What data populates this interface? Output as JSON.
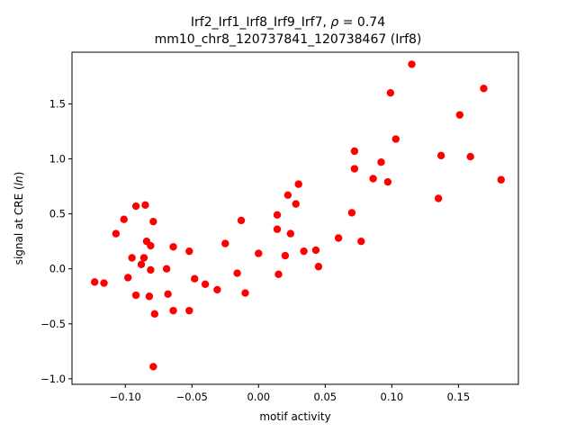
{
  "chart_data": {
    "type": "scatter",
    "title_line1": "Irf2_Irf1_Irf8_Irf9_Irf7, ",
    "title_rho_symbol": "ρ",
    "title_rho_value": " = 0.74",
    "title_line2": "mm10_chr8_120737841_120738467 (Irf8)",
    "xlabel": "motif activity",
    "ylabel_prefix": "signal at CRE (",
    "ylabel_italic": "ln",
    "ylabel_suffix": ")",
    "xlim": [
      -0.14,
      0.195
    ],
    "ylim": [
      -1.05,
      1.97
    ],
    "xticks": [
      -0.1,
      -0.05,
      0.0,
      0.05,
      0.1,
      0.15
    ],
    "xtick_labels": [
      "−0.10",
      "−0.05",
      "0.00",
      "0.05",
      "0.10",
      "0.15"
    ],
    "yticks": [
      -1.0,
      -0.5,
      0.0,
      0.5,
      1.0,
      1.5
    ],
    "ytick_labels": [
      "−1.0",
      "−0.5",
      "0.0",
      "0.5",
      "1.0",
      "1.5"
    ],
    "marker_color": "#ff0000",
    "grid": false,
    "points": [
      [
        -0.123,
        -0.12
      ],
      [
        -0.116,
        -0.13
      ],
      [
        -0.107,
        0.32
      ],
      [
        -0.101,
        0.45
      ],
      [
        -0.098,
        -0.08
      ],
      [
        -0.095,
        0.1
      ],
      [
        -0.092,
        0.57
      ],
      [
        -0.092,
        -0.24
      ],
      [
        -0.088,
        0.04
      ],
      [
        -0.086,
        0.1
      ],
      [
        -0.085,
        0.58
      ],
      [
        -0.084,
        0.25
      ],
      [
        -0.082,
        -0.25
      ],
      [
        -0.081,
        -0.01
      ],
      [
        -0.081,
        0.21
      ],
      [
        -0.079,
        0.43
      ],
      [
        -0.078,
        -0.41
      ],
      [
        -0.079,
        -0.89
      ],
      [
        -0.069,
        0.0
      ],
      [
        -0.068,
        -0.23
      ],
      [
        -0.064,
        0.2
      ],
      [
        -0.064,
        -0.38
      ],
      [
        -0.052,
        0.16
      ],
      [
        -0.052,
        -0.38
      ],
      [
        -0.048,
        -0.09
      ],
      [
        -0.04,
        -0.14
      ],
      [
        -0.031,
        -0.19
      ],
      [
        -0.025,
        0.23
      ],
      [
        -0.016,
        -0.04
      ],
      [
        -0.013,
        0.44
      ],
      [
        -0.01,
        -0.22
      ],
      [
        0.0,
        0.14
      ],
      [
        0.014,
        0.49
      ],
      [
        0.014,
        0.36
      ],
      [
        0.015,
        -0.05
      ],
      [
        0.02,
        0.12
      ],
      [
        0.022,
        0.67
      ],
      [
        0.024,
        0.32
      ],
      [
        0.028,
        0.59
      ],
      [
        0.03,
        0.77
      ],
      [
        0.034,
        0.16
      ],
      [
        0.043,
        0.17
      ],
      [
        0.045,
        0.02
      ],
      [
        0.06,
        0.28
      ],
      [
        0.07,
        0.51
      ],
      [
        0.072,
        0.91
      ],
      [
        0.072,
        1.07
      ],
      [
        0.077,
        0.25
      ],
      [
        0.086,
        0.82
      ],
      [
        0.092,
        0.97
      ],
      [
        0.097,
        0.79
      ],
      [
        0.099,
        1.6
      ],
      [
        0.103,
        1.18
      ],
      [
        0.115,
        1.86
      ],
      [
        0.135,
        0.64
      ],
      [
        0.137,
        1.03
      ],
      [
        0.151,
        1.4
      ],
      [
        0.159,
        1.02
      ],
      [
        0.169,
        1.64
      ],
      [
        0.182,
        0.81
      ]
    ]
  }
}
